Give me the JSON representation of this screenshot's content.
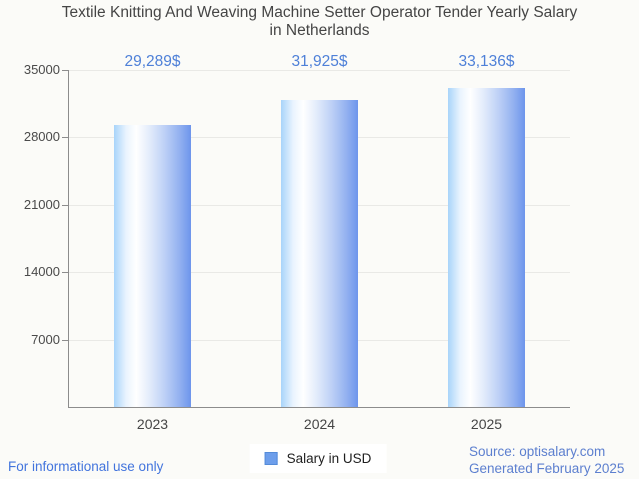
{
  "title": {
    "line1": "Textile Knitting And Weaving Machine Setter Operator Tender Yearly Salary",
    "line2": "in Netherlands"
  },
  "chart_data": {
    "type": "bar",
    "categories": [
      "2023",
      "2024",
      "2025"
    ],
    "values": [
      29289,
      31925,
      33136
    ],
    "value_labels": [
      "29,289$",
      "31,925$",
      "33,136$"
    ],
    "series": [
      {
        "name": "Salary in USD",
        "values": [
          29289,
          31925,
          33136
        ]
      }
    ],
    "title": "Textile Knitting And Weaving Machine Setter Operator Tender Yearly Salary in Netherlands",
    "xlabel": "",
    "ylabel": "",
    "ylim": [
      0,
      35000
    ],
    "yticks": [
      7000,
      14000,
      21000,
      28000,
      35000
    ],
    "grid": true,
    "legend_position": "bottom"
  },
  "legend": {
    "label": "Salary in USD"
  },
  "footer": {
    "disclaimer": "For informational use only",
    "source": "Source: optisalary.com",
    "generated": "Generated February 2025"
  },
  "colors": {
    "background": "#fbfbf8",
    "title": "#454545",
    "value_label": "#4e80d8",
    "bar_gradient_left": "#a8d4fa",
    "bar_gradient_right": "#6d95ec",
    "axis": "#8c8c8c",
    "gridline": "#e9e9e6",
    "legend_swatch": "#6d9eeb",
    "disclaimer_blue": "#4274dd",
    "source_blue": "#5c7fcf"
  }
}
